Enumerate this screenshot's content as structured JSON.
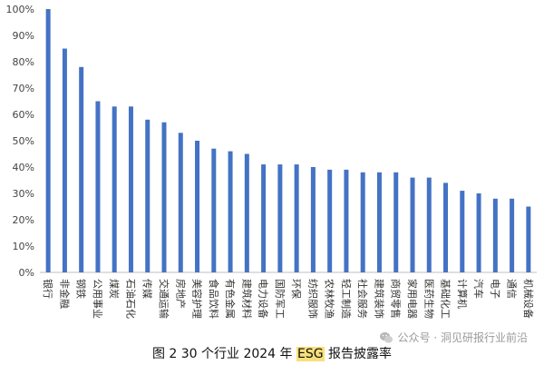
{
  "chart_data": {
    "type": "bar",
    "categories": [
      "银行",
      "非金融",
      "钢铁",
      "公用事业",
      "煤炭",
      "石油石化",
      "传媒",
      "交通运输",
      "房地产",
      "美容护理",
      "食品饮料",
      "有色金属",
      "建筑材料",
      "电力设备",
      "国防军工",
      "环保",
      "纺织服饰",
      "农林牧渔",
      "轻工制造",
      "社会服务",
      "建筑装饰",
      "商贸零售",
      "家用电器",
      "医药生物",
      "基础化工",
      "计算机",
      "汽车",
      "电子",
      "通信",
      "机械设备"
    ],
    "values": [
      100,
      85,
      78,
      65,
      63,
      63,
      58,
      57,
      53,
      50,
      47,
      46,
      45,
      41,
      41,
      41,
      40,
      39,
      39,
      38,
      38,
      38,
      36,
      36,
      34,
      31,
      30,
      28,
      28,
      25
    ],
    "ylim": [
      0,
      100
    ],
    "yticks": [
      "0%",
      "10%",
      "20%",
      "30%",
      "40%",
      "50%",
      "60%",
      "70%",
      "80%",
      "90%",
      "100%"
    ],
    "grid": false,
    "bar_color": "#4472c4"
  },
  "caption": {
    "prefix": "图 2  30 个行业 2024 年 ",
    "highlight": "ESG",
    "suffix": " 报告披露率"
  },
  "watermark": {
    "icon": "wechat-icon",
    "text": "公众号 · 洞见研报行业前沿"
  }
}
